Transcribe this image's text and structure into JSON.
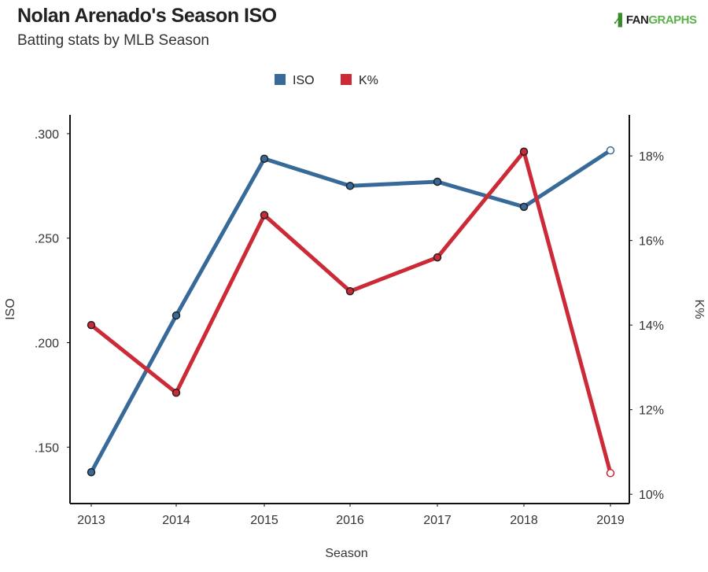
{
  "header": {
    "title": "Nolan Arenado's Season ISO",
    "subtitle": "Batting stats by MLB Season",
    "logo_text": "FANGRAPHS"
  },
  "chart_data": {
    "type": "line",
    "title": "Nolan Arenado's Season ISO",
    "subtitle": "Batting stats by MLB Season",
    "xlabel": "Season",
    "ylabel": "ISO",
    "y2label": "K%",
    "categories": [
      "2013",
      "2014",
      "2015",
      "2016",
      "2017",
      "2018",
      "2019"
    ],
    "ylim": [
      0.123,
      0.309
    ],
    "y2lim": [
      9.78,
      18.97
    ],
    "yticks": [
      {
        "v": 0.15,
        "label": ".150"
      },
      {
        "v": 0.2,
        "label": ".200"
      },
      {
        "v": 0.25,
        "label": ".250"
      },
      {
        "v": 0.3,
        "label": ".300"
      }
    ],
    "y2ticks": [
      {
        "v": 10,
        "label": "10%"
      },
      {
        "v": 12,
        "label": "12%"
      },
      {
        "v": 14,
        "label": "14%"
      },
      {
        "v": 16,
        "label": "16%"
      },
      {
        "v": 18,
        "label": "18%"
      }
    ],
    "legend_position": "top-center",
    "grid": false,
    "series": [
      {
        "name": "ISO",
        "axis": "left",
        "color": "#376a99",
        "values": [
          0.138,
          0.213,
          0.288,
          0.275,
          0.277,
          0.265,
          0.292
        ]
      },
      {
        "name": "K%",
        "axis": "right",
        "color": "#cc2a36",
        "values": [
          14.0,
          12.4,
          16.6,
          14.8,
          15.6,
          18.1,
          10.5
        ]
      }
    ],
    "hollow_last_point": true
  }
}
